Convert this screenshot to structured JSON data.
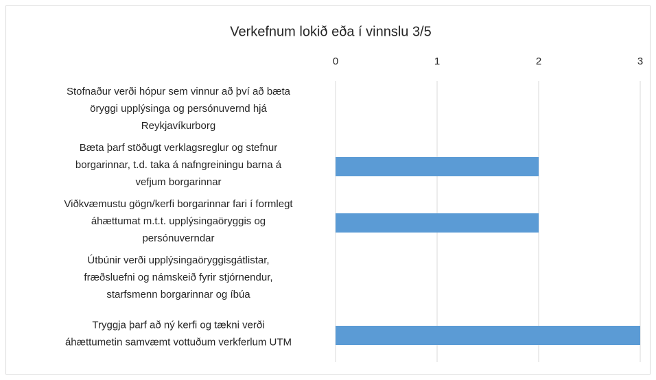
{
  "chart_data": {
    "type": "bar",
    "orientation": "horizontal",
    "title": "Verkefnum lokið eða í vinnslu 3/5",
    "categories": [
      "Stofnaður verði hópur sem vinnur að því að bæta\nöryggi upplýsinga og persónuvernd hjá\nReykjavíkurborg",
      "Bæta þarf stöðugt verklagsreglur og stefnur\nborgarinnar, t.d. taka á nafngreiningu barna á\nvefjum borgarinnar",
      "Viðkvæmustu gögn/kerfi borgarinnar fari í formlegt\náhættumat m.t.t. upplýsingaöryggis og\npersónuverndar",
      "Útbúnir verði upplýsingaöryggisgátlistar,\nfræðsluefni og námskeið fyrir stjórnendur,\nstarfsmenn borgarinnar og íbúa",
      "Tryggja þarf að ný kerfi og tækni verði\náhættumetin samvæmt vottuðum verkferlum UTM"
    ],
    "values": [
      0,
      2,
      2,
      0,
      3
    ],
    "color": "#5b9bd5",
    "xlim": [
      0,
      3
    ],
    "xticks": [
      0,
      1,
      2,
      3
    ],
    "grid": true
  }
}
